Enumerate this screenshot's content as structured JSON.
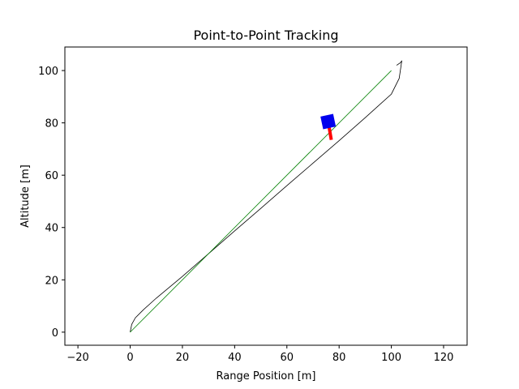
{
  "chart_data": {
    "type": "line",
    "title": "Point-to-Point Tracking",
    "xlabel": "Range Position [m]",
    "ylabel": "Altitude [m]",
    "xlim": [
      -25,
      129
    ],
    "ylim": [
      -5,
      109
    ],
    "xticks": [
      -20,
      0,
      20,
      40,
      60,
      80,
      100,
      120
    ],
    "yticks": [
      0,
      20,
      40,
      60,
      80,
      100
    ],
    "grid": false,
    "series": [
      {
        "color": "#000000",
        "x": [
          0,
          0.6,
          2,
          5,
          10,
          20,
          30,
          40,
          50,
          60,
          70,
          80,
          90,
          100,
          103,
          104,
          103.5,
          102
        ],
        "y": [
          0,
          3,
          5.5,
          8.5,
          13,
          21.3,
          30,
          38.7,
          47.3,
          56,
          64.6,
          73.2,
          82,
          91,
          97,
          103.8,
          103,
          102
        ]
      },
      {
        "color": "#008000",
        "x": [
          0,
          100
        ],
        "y": [
          0,
          100
        ]
      }
    ],
    "vehicle": {
      "body": {
        "x": 75.8,
        "y": 80.5,
        "color": "#0000ee"
      },
      "arm": {
        "x1": 75.8,
        "y1": 80.5,
        "x2": 77,
        "y2": 73.5,
        "color": "#ff0000"
      }
    }
  }
}
